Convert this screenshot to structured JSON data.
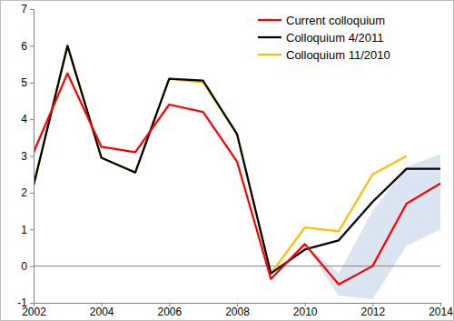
{
  "chart_data": {
    "type": "line",
    "x": [
      2002,
      2003,
      2004,
      2005,
      2006,
      2007,
      2008,
      2009,
      2010,
      2011,
      2012,
      2013,
      2014
    ],
    "series": [
      {
        "name": "Colloquium 11/2010",
        "color": "#ffc000",
        "values": [
          2.2,
          6.0,
          2.95,
          2.55,
          5.1,
          5.0,
          3.6,
          -0.2,
          1.05,
          0.95,
          2.5,
          3.0,
          null
        ]
      },
      {
        "name": "Colloquium 4/2011",
        "color": "#000000",
        "values": [
          2.2,
          6.0,
          2.95,
          2.55,
          5.1,
          5.05,
          3.6,
          -0.2,
          0.45,
          0.7,
          1.75,
          2.65,
          2.65
        ]
      },
      {
        "name": "Current colloquium",
        "color": "#ff0000",
        "values": [
          3.1,
          5.25,
          3.25,
          3.1,
          4.4,
          4.2,
          2.85,
          -0.35,
          0.6,
          -0.5,
          0.0,
          1.7,
          2.25
        ]
      }
    ],
    "band": {
      "color": "#dbe5f1",
      "lower": [
        null,
        null,
        null,
        null,
        null,
        null,
        null,
        null,
        0.6,
        -0.8,
        -0.9,
        0.55,
        1.0
      ],
      "upper": [
        null,
        null,
        null,
        null,
        null,
        null,
        null,
        null,
        0.6,
        -0.2,
        1.5,
        2.7,
        3.05
      ]
    },
    "xlim": [
      2002,
      2014
    ],
    "xticks": [
      2002,
      2004,
      2006,
      2008,
      2010,
      2012,
      2014
    ],
    "ylim": [
      -1,
      7
    ],
    "yticks": [
      -1,
      0,
      1,
      2,
      3,
      4,
      5,
      6,
      7
    ],
    "grid": false,
    "legend": "upper right"
  }
}
